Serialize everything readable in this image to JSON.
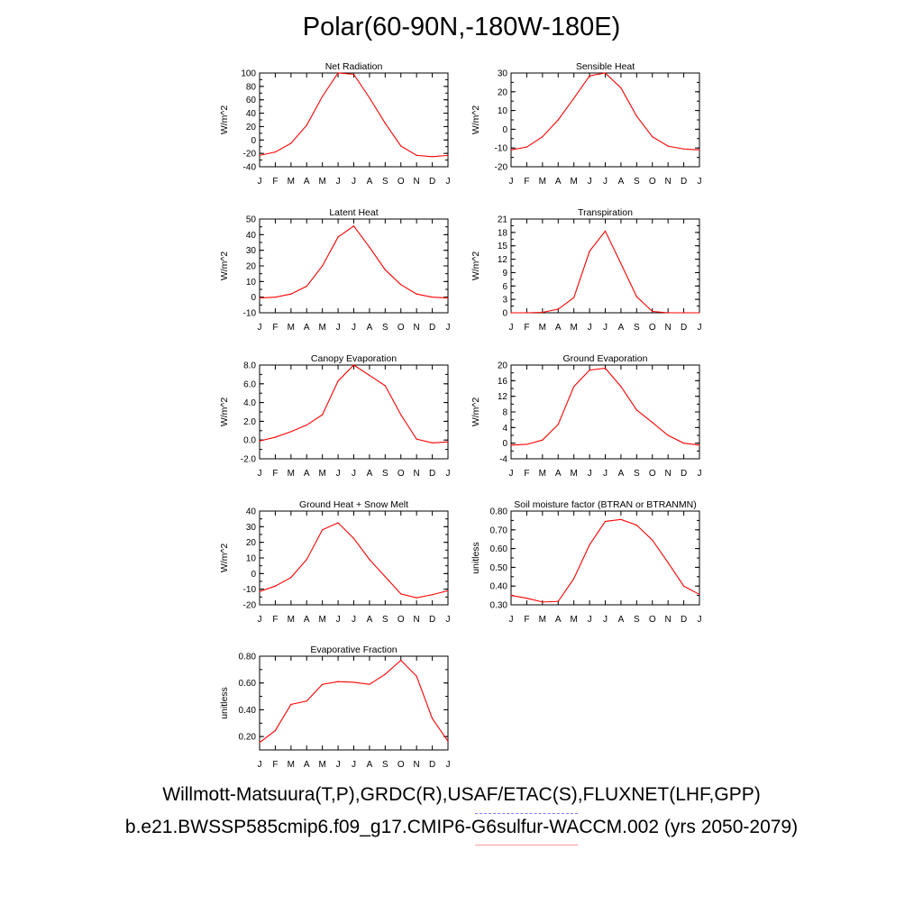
{
  "figure": {
    "title": "Polar(60-90N,-180W-180E)",
    "legend_lines": [
      "Willmott-Matsuura(T,P),GRDC(R),USAF/ETAC(S),FLUXNET(LHF,GPP)",
      "b.e21.BWSSP585cmip6.f09_g17.CMIP6-G6sulfur-WACCM.002 (yrs 2050-2079)"
    ],
    "line_color": "#ff0000",
    "legend_observed_color": "#7a7aff",
    "legend_model_color": "#ff9a9a"
  },
  "chart_data": [
    {
      "type": "line",
      "title": "Net Radiation",
      "ylabel": "W/m^2",
      "categories": [
        "J",
        "F",
        "M",
        "A",
        "M",
        "J",
        "J",
        "A",
        "S",
        "O",
        "N",
        "D",
        "J"
      ],
      "ylim": [
        -40,
        100
      ],
      "yticks": [
        "-40",
        "-20",
        "0",
        "20",
        "40",
        "60",
        "80",
        "100"
      ],
      "series": [
        {
          "values": [
            -23,
            -18,
            -5,
            22,
            65,
            100,
            98,
            63,
            25,
            -9,
            -23,
            -25,
            -23
          ]
        }
      ]
    },
    {
      "type": "line",
      "title": "Sensible Heat",
      "ylabel": "W/m^2",
      "categories": [
        "J",
        "F",
        "M",
        "A",
        "M",
        "J",
        "J",
        "A",
        "S",
        "O",
        "N",
        "D",
        "J"
      ],
      "ylim": [
        -20,
        30
      ],
      "yticks": [
        "-20",
        "-10",
        "0",
        "10",
        "20",
        "30"
      ],
      "series": [
        {
          "values": [
            -11,
            -9.5,
            -4,
            5,
            16.5,
            28.5,
            30,
            22,
            7,
            -4,
            -9,
            -10.5,
            -11
          ]
        }
      ]
    },
    {
      "type": "line",
      "title": "Latent Heat",
      "ylabel": "W/m^2",
      "categories": [
        "J",
        "F",
        "M",
        "A",
        "M",
        "J",
        "J",
        "A",
        "S",
        "O",
        "N",
        "D",
        "J"
      ],
      "ylim": [
        -10,
        50
      ],
      "yticks": [
        "-10",
        "0",
        "10",
        "20",
        "30",
        "40",
        "50"
      ],
      "series": [
        {
          "values": [
            -0.5,
            0,
            2,
            7,
            20,
            38.5,
            45.5,
            32,
            17.5,
            8,
            2,
            0,
            -0.5
          ]
        }
      ]
    },
    {
      "type": "line",
      "title": "Transpiration",
      "ylabel": "W/m^2",
      "categories": [
        "J",
        "F",
        "M",
        "A",
        "M",
        "J",
        "J",
        "A",
        "S",
        "O",
        "N",
        "D",
        "J"
      ],
      "ylim": [
        0,
        21
      ],
      "yticks": [
        "0",
        "3",
        "6",
        "9",
        "12",
        "15",
        "18",
        "21"
      ],
      "series": [
        {
          "values": [
            0,
            0,
            0.1,
            0.8,
            3.4,
            13.8,
            18.3,
            11,
            3.6,
            0.3,
            0,
            0,
            0
          ]
        }
      ]
    },
    {
      "type": "line",
      "title": "Canopy Evaporation",
      "ylabel": "W/m^2",
      "categories": [
        "J",
        "F",
        "M",
        "A",
        "M",
        "J",
        "J",
        "A",
        "S",
        "O",
        "N",
        "D",
        "J"
      ],
      "ylim": [
        -2,
        8
      ],
      "yticks": [
        "-2.0",
        "0.0",
        "2.0",
        "4.0",
        "6.0",
        "8.0"
      ],
      "series": [
        {
          "values": [
            -0.1,
            0.3,
            0.9,
            1.6,
            2.7,
            6.3,
            8.0,
            6.9,
            5.8,
            2.7,
            0.1,
            -0.3,
            -0.2
          ]
        }
      ]
    },
    {
      "type": "line",
      "title": "Ground Evaporation",
      "ylabel": "W/m^2",
      "categories": [
        "J",
        "F",
        "M",
        "A",
        "M",
        "J",
        "J",
        "A",
        "S",
        "O",
        "N",
        "D",
        "J"
      ],
      "ylim": [
        -4,
        20
      ],
      "yticks": [
        "-4",
        "0",
        "4",
        "8",
        "12",
        "16",
        "20"
      ],
      "series": [
        {
          "values": [
            -0.5,
            -0.3,
            0.8,
            4.8,
            14.5,
            18.7,
            19.2,
            14.5,
            8.5,
            5.3,
            2,
            0,
            -0.5
          ]
        }
      ]
    },
    {
      "type": "line",
      "title": "Ground Heat + Snow Melt",
      "ylabel": "W/m^2",
      "categories": [
        "J",
        "F",
        "M",
        "A",
        "M",
        "J",
        "J",
        "A",
        "S",
        "O",
        "N",
        "D",
        "J"
      ],
      "ylim": [
        -20,
        40
      ],
      "yticks": [
        "-20",
        "-10",
        "0",
        "10",
        "20",
        "30",
        "40"
      ],
      "series": [
        {
          "values": [
            -11.5,
            -8,
            -2.5,
            9,
            28,
            32.5,
            22.5,
            9,
            -2,
            -13,
            -15.5,
            -13.5,
            -11
          ]
        }
      ]
    },
    {
      "type": "line",
      "title": "Soil moisture factor (BTRAN or BTRANMN)",
      "ylabel": "unitless",
      "categories": [
        "J",
        "F",
        "M",
        "A",
        "M",
        "J",
        "J",
        "A",
        "S",
        "O",
        "N",
        "D",
        "J"
      ],
      "ylim": [
        0.3,
        0.8
      ],
      "yticks": [
        "0.30",
        "0.40",
        "0.50",
        "0.60",
        "0.70",
        "0.80"
      ],
      "series": [
        {
          "values": [
            0.35,
            0.335,
            0.315,
            0.318,
            0.44,
            0.62,
            0.745,
            0.755,
            0.725,
            0.645,
            0.525,
            0.4,
            0.355
          ]
        }
      ]
    },
    {
      "type": "line",
      "title": "Evaporative Fraction",
      "ylabel": "unitless",
      "categories": [
        "J",
        "F",
        "M",
        "A",
        "M",
        "J",
        "J",
        "A",
        "S",
        "O",
        "N",
        "D",
        "J"
      ],
      "ylim": [
        0.1,
        0.8
      ],
      "yticks": [
        "0.20",
        "0.40",
        "0.60",
        "0.80"
      ],
      "series": [
        {
          "values": [
            0.155,
            0.245,
            0.44,
            0.465,
            0.59,
            0.61,
            0.605,
            0.59,
            0.665,
            0.77,
            0.65,
            0.335,
            0.165
          ]
        }
      ]
    }
  ]
}
